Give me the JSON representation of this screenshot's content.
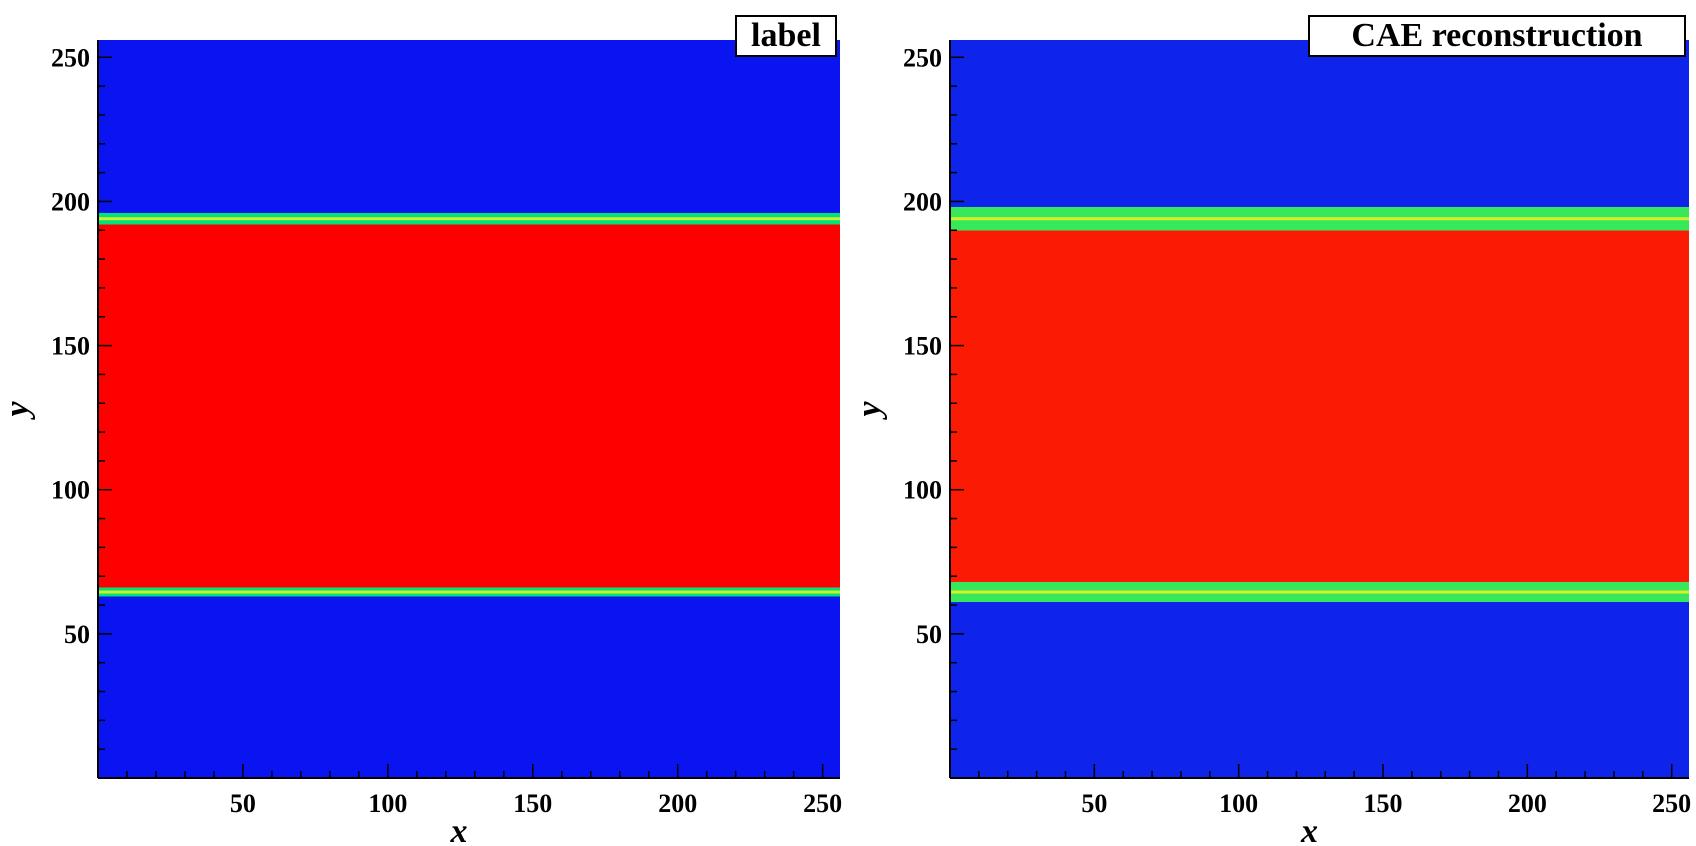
{
  "chart_data": [
    {
      "type": "heatmap",
      "title": "label",
      "xlabel": "x",
      "ylabel": "y",
      "xlim": [
        0,
        256
      ],
      "ylim": [
        0,
        256
      ],
      "xticks": [
        50,
        100,
        150,
        200,
        250
      ],
      "yticks": [
        50,
        100,
        150,
        200,
        250
      ],
      "grid": false,
      "colormap": "jet",
      "colors": {
        "low": "#0a14f0",
        "high": "#ff0000",
        "interface": "#00e27a"
      },
      "bands": [
        {
          "field": "low",
          "y": [
            0,
            63
          ]
        },
        {
          "field": "interface",
          "y": [
            63,
            66
          ]
        },
        {
          "field": "high",
          "y": [
            66,
            192
          ]
        },
        {
          "field": "interface",
          "y": [
            192,
            196
          ]
        },
        {
          "field": "low",
          "y": [
            196,
            256
          ]
        }
      ],
      "interfaces_y": [
        64.5,
        194
      ]
    },
    {
      "type": "heatmap",
      "title": "CAE reconstruction",
      "xlabel": "x",
      "ylabel": "y",
      "xlim": [
        0,
        256
      ],
      "ylim": [
        0,
        256
      ],
      "xticks": [
        50,
        100,
        150,
        200,
        250
      ],
      "yticks": [
        50,
        100,
        150,
        200,
        250
      ],
      "grid": false,
      "colormap": "jet",
      "colors": {
        "low": "#0f24ea",
        "high": "#fb1a04",
        "interface": "#37e85a"
      },
      "bands": [
        {
          "field": "low",
          "y": [
            0,
            61
          ]
        },
        {
          "field": "interface",
          "y": [
            61,
            68
          ]
        },
        {
          "field": "high",
          "y": [
            68,
            190
          ]
        },
        {
          "field": "interface",
          "y": [
            190,
            198
          ]
        },
        {
          "field": "low",
          "y": [
            198,
            256
          ]
        }
      ],
      "interfaces_y": [
        64.5,
        194
      ]
    }
  ]
}
